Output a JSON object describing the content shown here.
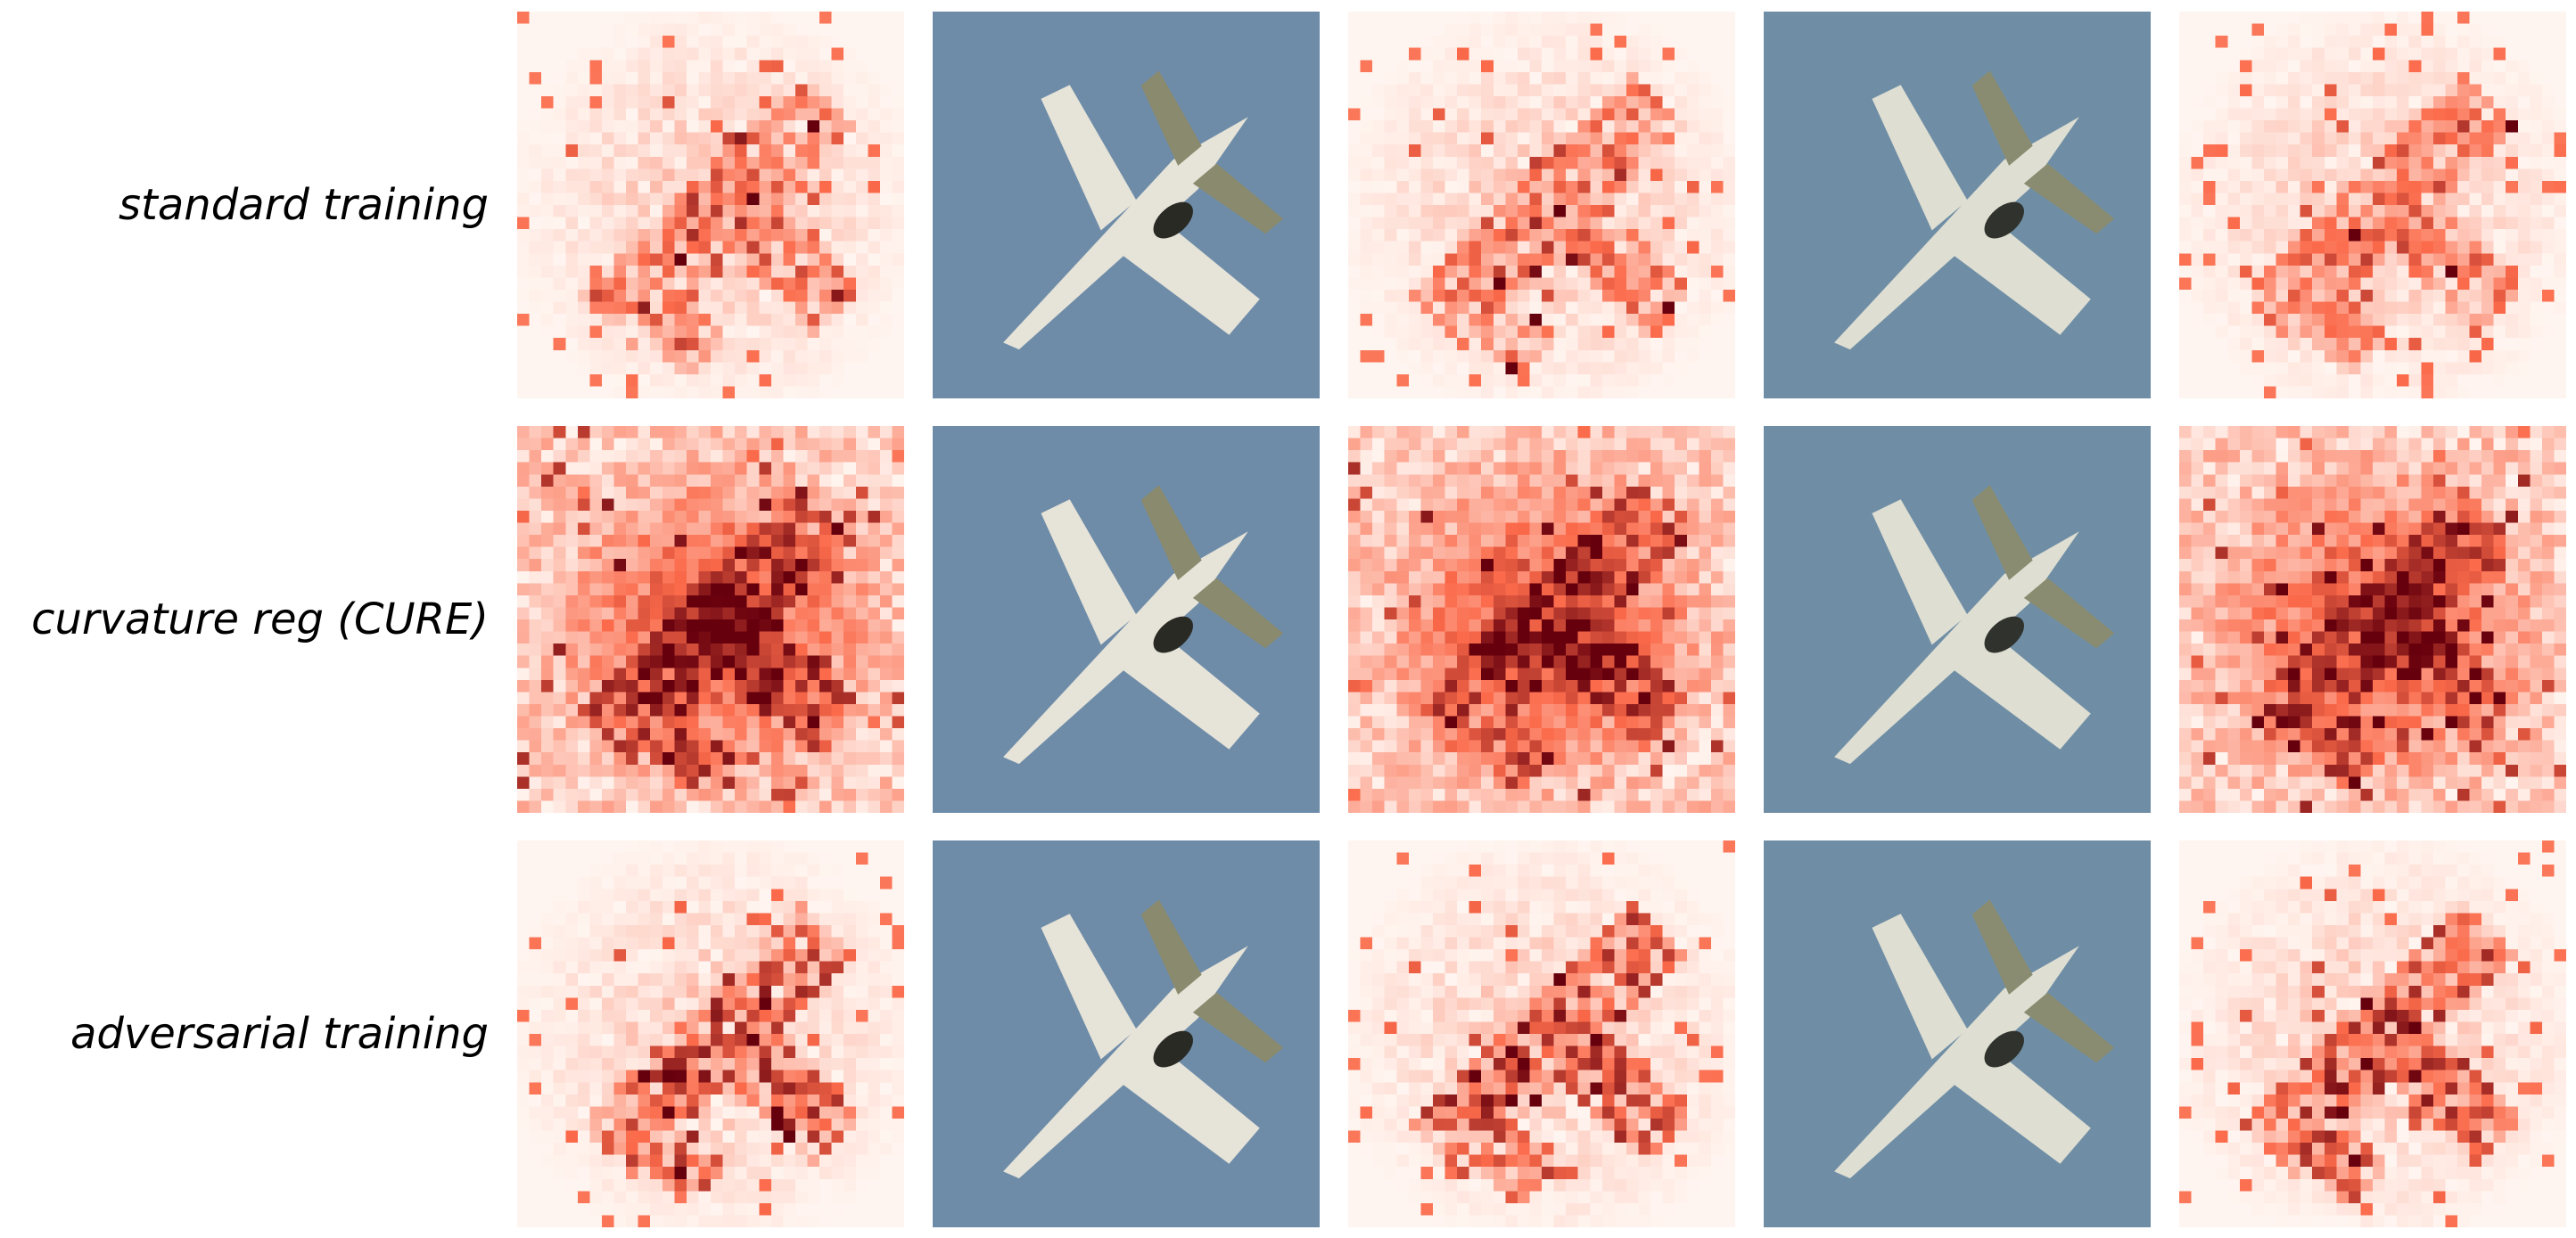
{
  "rows": [
    {
      "label": "standard training"
    },
    {
      "label": "curvature reg (CURE)"
    },
    {
      "label": "adversarial training"
    }
  ],
  "panel_types": [
    "saliency-heatmap",
    "airplane-image",
    "saliency-heatmap",
    "airplane-image",
    "saliency-heatmap"
  ],
  "colors": {
    "heatmap_low": "#fff5f0",
    "heatmap_mid": "#fb6a4a",
    "heatmap_high": "#67000d",
    "sky": "#6e8ca8",
    "airplane": "#e6e3d8",
    "airplane_shadow": "#8a8a6e",
    "engine_dark": "#2a2a25"
  }
}
